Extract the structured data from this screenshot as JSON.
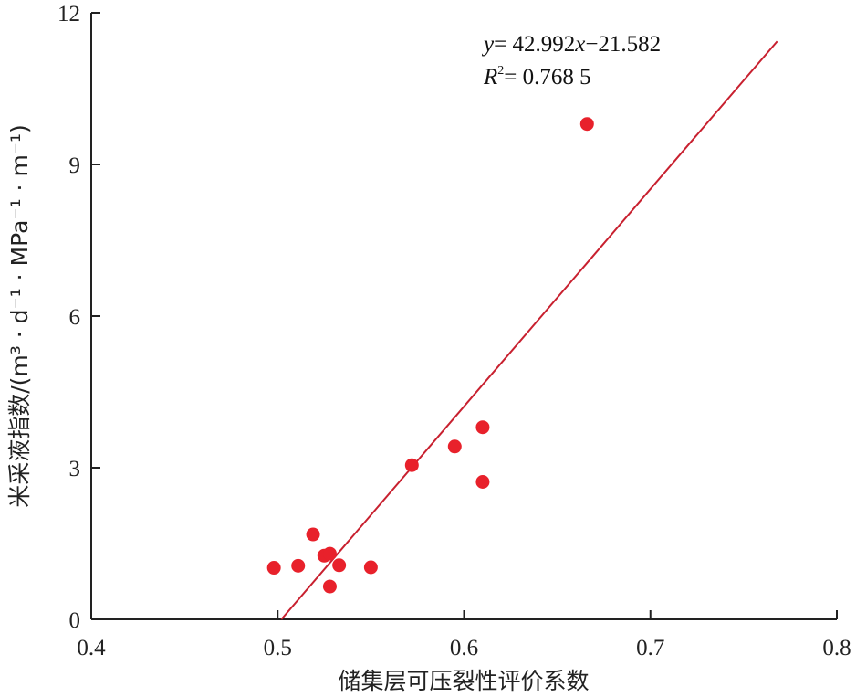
{
  "chart_data": {
    "type": "scatter",
    "title": "",
    "xlabel": "储集层可压裂性评价系数",
    "ylabel": "米采液指数/(m³ · d⁻¹ · MPa⁻¹ · m⁻¹)",
    "xlim": [
      0.4,
      0.8
    ],
    "ylim": [
      0,
      12
    ],
    "xticks": [
      "0.4",
      "0.5",
      "0.6",
      "0.7",
      "0.8"
    ],
    "yticks": [
      "0",
      "3",
      "6",
      "9",
      "12"
    ],
    "xtick_values": [
      0.4,
      0.5,
      0.6,
      0.7,
      0.8
    ],
    "ytick_values": [
      0,
      3,
      6,
      9,
      12
    ],
    "grid": false,
    "series": [
      {
        "marker_color": "#e8212b",
        "points": [
          {
            "x": 0.498,
            "y": 1.02
          },
          {
            "x": 0.511,
            "y": 1.06
          },
          {
            "x": 0.519,
            "y": 1.68
          },
          {
            "x": 0.525,
            "y": 1.26
          },
          {
            "x": 0.528,
            "y": 1.3
          },
          {
            "x": 0.528,
            "y": 0.65
          },
          {
            "x": 0.533,
            "y": 1.07
          },
          {
            "x": 0.55,
            "y": 1.03
          },
          {
            "x": 0.572,
            "y": 3.05
          },
          {
            "x": 0.595,
            "y": 3.42
          },
          {
            "x": 0.61,
            "y": 3.8
          },
          {
            "x": 0.61,
            "y": 2.72
          },
          {
            "x": 0.666,
            "y": 9.8
          }
        ]
      }
    ],
    "trendline": {
      "slope": 42.992,
      "intercept": -21.582,
      "x_range": [
        0.502,
        0.768
      ],
      "color": "#c8202f",
      "equation_parts": {
        "y": "y",
        "eq": "= 42.992",
        "x": "x",
        "rest": "−21.582"
      },
      "r2_parts": {
        "R": "R",
        "sup": "2",
        "rest": "= 0.768 5"
      }
    }
  }
}
